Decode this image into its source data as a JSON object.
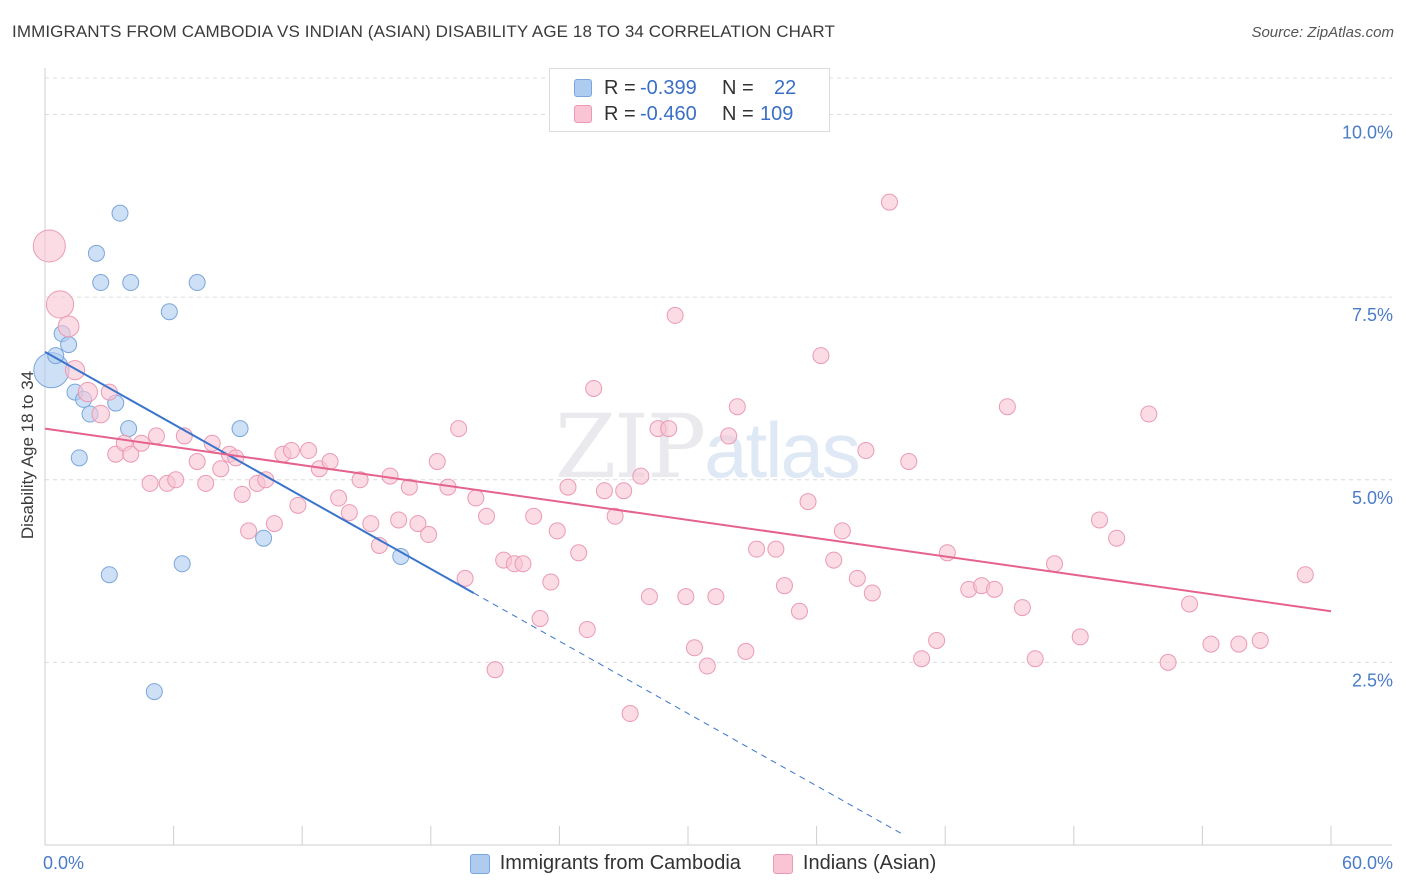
{
  "title": "IMMIGRANTS FROM CAMBODIA VS INDIAN (ASIAN) DISABILITY AGE 18 TO 34 CORRELATION CHART",
  "source": "Source: ZipAtlas.com",
  "watermark": {
    "zip": "ZIP",
    "atlas": "atlas"
  },
  "legend": {
    "rows": [
      {
        "r_label": "R =",
        "r_value": "-0.399",
        "n_label": "N =",
        "n_value": "22"
      },
      {
        "r_label": "R =",
        "r_value": "-0.460",
        "n_label": "N =",
        "n_value": "109"
      }
    ]
  },
  "colors": {
    "blue_fill": "#aecbf0",
    "blue_stroke": "#7aa6db",
    "blue_line": "#3a74cc",
    "pink_fill": "#f9c4d4",
    "pink_stroke": "#eb9ab4",
    "pink_line": "#e5628e",
    "tick_text": "#4a7cc9",
    "grid": "#dcdcdc"
  },
  "chart_data": {
    "type": "scatter",
    "title": "IMMIGRANTS FROM CAMBODIA VS INDIAN (ASIAN) DISABILITY AGE 18 TO 34 CORRELATION CHART",
    "xlabel": "",
    "ylabel": "Disability Age 18 to 34",
    "xlim": [
      0,
      60
    ],
    "ylim": [
      0,
      10.5
    ],
    "x_tick_labels": [
      "0.0%",
      "60.0%"
    ],
    "y_ticks": [
      2.5,
      5.0,
      7.5,
      10.0
    ],
    "y_tick_labels": [
      "2.5%",
      "5.0%",
      "7.5%",
      "10.0%"
    ],
    "series": [
      {
        "name": "Immigrants from Cambodia",
        "color": "blue",
        "points": [
          [
            0.3,
            6.5,
            2.2
          ],
          [
            0.5,
            6.7,
            1
          ],
          [
            0.8,
            7.0,
            1
          ],
          [
            1.1,
            6.85,
            1
          ],
          [
            1.4,
            6.2,
            1
          ],
          [
            1.6,
            5.3,
            1
          ],
          [
            1.8,
            6.1,
            1
          ],
          [
            2.1,
            5.9,
            1
          ],
          [
            2.4,
            8.1,
            1
          ],
          [
            2.6,
            7.7,
            1
          ],
          [
            3.0,
            3.7,
            1
          ],
          [
            3.3,
            6.05,
            1
          ],
          [
            3.5,
            8.65,
            1
          ],
          [
            3.9,
            5.7,
            1
          ],
          [
            4.0,
            7.7,
            1
          ],
          [
            5.1,
            2.1,
            1
          ],
          [
            5.8,
            7.3,
            1
          ],
          [
            6.4,
            3.85,
            1
          ],
          [
            7.1,
            7.7,
            1
          ],
          [
            9.1,
            5.7,
            1
          ],
          [
            10.2,
            4.2,
            1
          ],
          [
            16.6,
            3.95,
            1
          ]
        ],
        "trend": {
          "x0": 0,
          "y0": 6.75,
          "x1": 20,
          "y1": 3.45,
          "dashed_to_x": 40
        }
      },
      {
        "name": "Indians (Asian)",
        "color": "pink",
        "points": [
          [
            0.2,
            8.2,
            2.0
          ],
          [
            0.7,
            7.4,
            1.7
          ],
          [
            1.1,
            7.1,
            1.3
          ],
          [
            1.4,
            6.5,
            1.2
          ],
          [
            2.0,
            6.2,
            1.2
          ],
          [
            2.6,
            5.9,
            1.1
          ],
          [
            3.0,
            6.2,
            1
          ],
          [
            3.3,
            5.35,
            1
          ],
          [
            3.7,
            5.5,
            1
          ],
          [
            4.0,
            5.35,
            1
          ],
          [
            4.5,
            5.5,
            1
          ],
          [
            4.9,
            4.95,
            1
          ],
          [
            5.2,
            5.6,
            1
          ],
          [
            5.7,
            4.95,
            1
          ],
          [
            6.1,
            5.0,
            1
          ],
          [
            6.5,
            5.6,
            1
          ],
          [
            7.1,
            5.25,
            1
          ],
          [
            7.5,
            4.95,
            1
          ],
          [
            7.8,
            5.5,
            1
          ],
          [
            8.2,
            5.15,
            1
          ],
          [
            8.6,
            5.35,
            1
          ],
          [
            8.9,
            5.3,
            1
          ],
          [
            9.2,
            4.8,
            1
          ],
          [
            9.5,
            4.3,
            1
          ],
          [
            9.9,
            4.95,
            1
          ],
          [
            10.3,
            5.0,
            1
          ],
          [
            10.7,
            4.4,
            1
          ],
          [
            11.1,
            5.35,
            1
          ],
          [
            11.5,
            5.4,
            1
          ],
          [
            11.8,
            4.65,
            1
          ],
          [
            12.3,
            5.4,
            1
          ],
          [
            12.8,
            5.15,
            1
          ],
          [
            13.3,
            5.25,
            1
          ],
          [
            13.7,
            4.75,
            1
          ],
          [
            14.2,
            4.55,
            1
          ],
          [
            14.7,
            5.0,
            1
          ],
          [
            15.2,
            4.4,
            1
          ],
          [
            15.6,
            4.1,
            1
          ],
          [
            16.1,
            5.05,
            1
          ],
          [
            16.5,
            4.45,
            1
          ],
          [
            17.0,
            4.9,
            1
          ],
          [
            17.4,
            4.4,
            1
          ],
          [
            17.9,
            4.25,
            1
          ],
          [
            18.3,
            5.25,
            1
          ],
          [
            18.8,
            4.9,
            1
          ],
          [
            19.3,
            5.7,
            1
          ],
          [
            19.6,
            3.65,
            1
          ],
          [
            20.1,
            4.75,
            1
          ],
          [
            20.6,
            4.5,
            1
          ],
          [
            21.0,
            2.4,
            1
          ],
          [
            21.4,
            3.9,
            1
          ],
          [
            21.9,
            3.85,
            1
          ],
          [
            22.3,
            3.85,
            1
          ],
          [
            22.8,
            4.5,
            1
          ],
          [
            23.1,
            3.1,
            1
          ],
          [
            23.6,
            3.6,
            1
          ],
          [
            23.9,
            4.3,
            1
          ],
          [
            24.4,
            4.9,
            1
          ],
          [
            24.9,
            4.0,
            1
          ],
          [
            25.3,
            2.95,
            1
          ],
          [
            25.6,
            6.25,
            1
          ],
          [
            26.1,
            4.85,
            1
          ],
          [
            26.6,
            4.5,
            1
          ],
          [
            27.0,
            4.85,
            1
          ],
          [
            27.3,
            1.8,
            1
          ],
          [
            27.8,
            5.05,
            1
          ],
          [
            28.2,
            3.4,
            1
          ],
          [
            28.6,
            5.7,
            1
          ],
          [
            29.1,
            5.7,
            1
          ],
          [
            29.4,
            7.25,
            1
          ],
          [
            29.9,
            3.4,
            1
          ],
          [
            30.3,
            2.7,
            1
          ],
          [
            30.9,
            2.45,
            1
          ],
          [
            31.3,
            3.4,
            1
          ],
          [
            31.9,
            5.6,
            1
          ],
          [
            32.3,
            6.0,
            1
          ],
          [
            32.7,
            2.65,
            1
          ],
          [
            33.2,
            4.05,
            1
          ],
          [
            34.1,
            4.05,
            1
          ],
          [
            34.5,
            3.55,
            1
          ],
          [
            35.2,
            3.2,
            1
          ],
          [
            35.6,
            4.7,
            1
          ],
          [
            36.2,
            6.7,
            1
          ],
          [
            36.8,
            3.9,
            1
          ],
          [
            37.2,
            4.3,
            1
          ],
          [
            37.9,
            3.65,
            1
          ],
          [
            38.3,
            5.4,
            1
          ],
          [
            38.6,
            3.45,
            1
          ],
          [
            39.4,
            8.8,
            1
          ],
          [
            40.3,
            5.25,
            1
          ],
          [
            40.9,
            2.55,
            1
          ],
          [
            41.6,
            2.8,
            1
          ],
          [
            42.1,
            4.0,
            1
          ],
          [
            43.1,
            3.5,
            1
          ],
          [
            43.7,
            3.55,
            1
          ],
          [
            44.3,
            3.5,
            1
          ],
          [
            44.9,
            6.0,
            1
          ],
          [
            45.6,
            3.25,
            1
          ],
          [
            46.2,
            2.55,
            1
          ],
          [
            47.1,
            3.85,
            1
          ],
          [
            48.3,
            2.85,
            1
          ],
          [
            49.2,
            4.45,
            1
          ],
          [
            50.0,
            4.2,
            1
          ],
          [
            51.5,
            5.9,
            1
          ],
          [
            52.4,
            2.5,
            1
          ],
          [
            53.4,
            3.3,
            1
          ],
          [
            54.4,
            2.75,
            1
          ],
          [
            55.7,
            2.75,
            1
          ],
          [
            56.7,
            2.8,
            1
          ],
          [
            58.8,
            3.7,
            1
          ]
        ],
        "trend": {
          "x0": 0,
          "y0": 5.7,
          "x1": 60,
          "y1": 3.2
        }
      }
    ]
  },
  "bottom_legend": [
    {
      "label": "Immigrants from Cambodia"
    },
    {
      "label": "Indians (Asian)"
    }
  ]
}
